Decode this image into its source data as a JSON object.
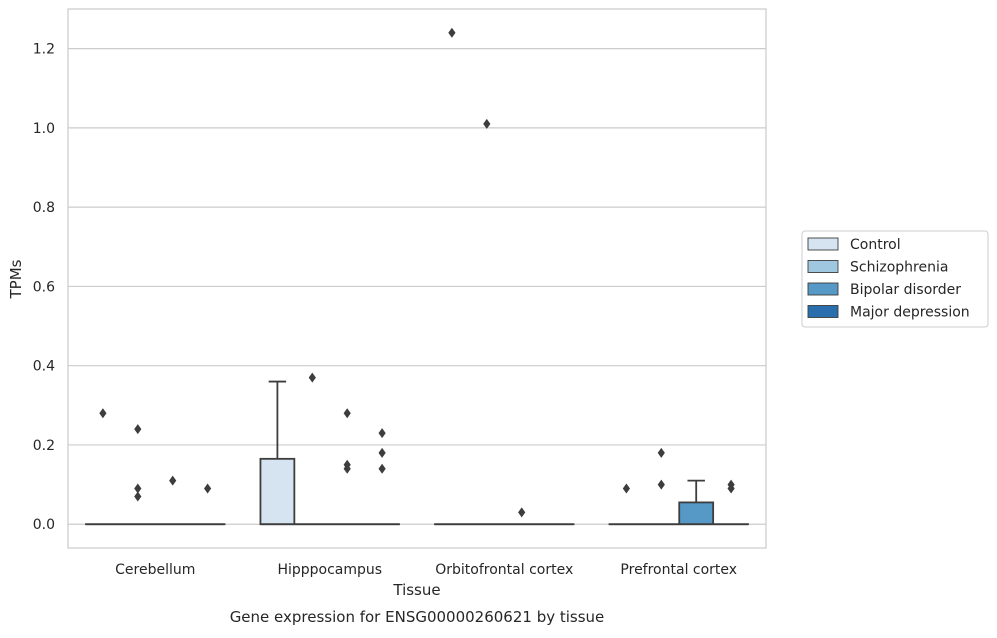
{
  "caption": "Gene expression for ENSG00000260621 by tissue",
  "chart_data": {
    "type": "box",
    "title": "",
    "xlabel": "Tissue",
    "ylabel": "TPMs",
    "ylim": [
      -0.06,
      1.3
    ],
    "yticks": [
      0.0,
      0.2,
      0.4,
      0.6,
      0.8,
      1.0,
      1.2
    ],
    "ytick_labels": [
      "0.0",
      "0.2",
      "0.4",
      "0.6",
      "0.8",
      "1.0",
      "1.2"
    ],
    "grid": "horizontal",
    "legend_position": "right",
    "categories": [
      "Cerebellum",
      "Hipppocampus",
      "Orbitofrontal cortex",
      "Prefrontal cortex"
    ],
    "series": [
      {
        "name": "Control",
        "color": "#d6e4f2",
        "boxes": [
          {
            "q1": 0,
            "median": 0,
            "q3": 0,
            "whisker_low": 0,
            "whisker_high": 0,
            "outliers": [
              0.28
            ]
          },
          {
            "q1": 0,
            "median": 0,
            "q3": 0.165,
            "whisker_low": 0,
            "whisker_high": 0.36,
            "outliers": []
          },
          {
            "q1": 0,
            "median": 0,
            "q3": 0,
            "whisker_low": 0,
            "whisker_high": 0,
            "outliers": [
              1.24
            ]
          },
          {
            "q1": 0,
            "median": 0,
            "q3": 0,
            "whisker_low": 0,
            "whisker_high": 0,
            "outliers": [
              0.09
            ]
          }
        ]
      },
      {
        "name": "Schizophrenia",
        "color": "#9fc7e0",
        "boxes": [
          {
            "q1": 0,
            "median": 0,
            "q3": 0,
            "whisker_low": 0,
            "whisker_high": 0,
            "outliers": [
              0.24,
              0.09,
              0.07
            ]
          },
          {
            "q1": 0,
            "median": 0,
            "q3": 0,
            "whisker_low": 0,
            "whisker_high": 0,
            "outliers": [
              0.37
            ]
          },
          {
            "q1": 0,
            "median": 0,
            "q3": 0,
            "whisker_low": 0,
            "whisker_high": 0,
            "outliers": [
              1.01
            ]
          },
          {
            "q1": 0,
            "median": 0,
            "q3": 0,
            "whisker_low": 0,
            "whisker_high": 0,
            "outliers": [
              0.18,
              0.1
            ]
          }
        ]
      },
      {
        "name": "Bipolar disorder",
        "color": "#5699c6",
        "boxes": [
          {
            "q1": 0,
            "median": 0,
            "q3": 0,
            "whisker_low": 0,
            "whisker_high": 0,
            "outliers": [
              0.11
            ]
          },
          {
            "q1": 0,
            "median": 0,
            "q3": 0,
            "whisker_low": 0,
            "whisker_high": 0,
            "outliers": [
              0.28,
              0.15,
              0.14
            ]
          },
          {
            "q1": 0,
            "median": 0,
            "q3": 0,
            "whisker_low": 0,
            "whisker_high": 0,
            "outliers": [
              0.03
            ]
          },
          {
            "q1": 0,
            "median": 0,
            "q3": 0.055,
            "whisker_low": 0,
            "whisker_high": 0.11,
            "outliers": []
          }
        ]
      },
      {
        "name": "Major depression",
        "color": "#2a6eae",
        "boxes": [
          {
            "q1": 0,
            "median": 0,
            "q3": 0,
            "whisker_low": 0,
            "whisker_high": 0,
            "outliers": [
              0.09
            ]
          },
          {
            "q1": 0,
            "median": 0,
            "q3": 0,
            "whisker_low": 0,
            "whisker_high": 0,
            "outliers": [
              0.23,
              0.18,
              0.14
            ]
          },
          {
            "q1": 0,
            "median": 0,
            "q3": 0,
            "whisker_low": 0,
            "whisker_high": 0,
            "outliers": []
          },
          {
            "q1": 0,
            "median": 0,
            "q3": 0,
            "whisker_low": 0,
            "whisker_high": 0,
            "outliers": [
              0.1,
              0.09
            ]
          }
        ]
      }
    ]
  }
}
